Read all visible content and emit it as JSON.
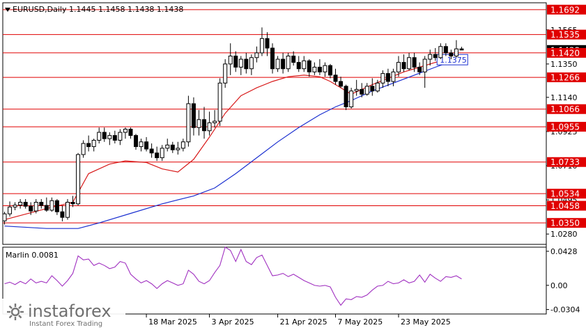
{
  "header": {
    "symbol_line": "EURUSD,Daily  1.1445 1.1458 1.1438 1.1438",
    "indicator_label": "Marlin 0.0081"
  },
  "watermark": {
    "brand": "instaforex",
    "tagline": "Instant Forex Trading"
  },
  "colors": {
    "background": "#ffffff",
    "level_line": "#e00000",
    "level_label_bg": "#e00000",
    "ma_fast": "#d81b1b",
    "ma_slow": "#1a2fd0",
    "ma_callout_border": "#1a2fd0",
    "marlin": "#a030c0",
    "candle": "#000000"
  },
  "chart_data": [
    {
      "type": "candlestick",
      "title": "EURUSD,Daily",
      "ohlc_last": {
        "open": 1.1445,
        "high": 1.1458,
        "low": 1.1438,
        "close": 1.1438
      },
      "ylim": [
        1.0215,
        1.1735
      ],
      "y_ticks": [
        1.1565,
        1.135,
        1.114,
        1.0925,
        1.071,
        1.0495,
        1.028
      ],
      "x_tick_labels": [
        "18 Mar 2025",
        "3 Apr 2025",
        "21 Apr 2025",
        "7 May 2025",
        "23 May 2025"
      ],
      "x_tick_index": [
        27,
        39,
        52,
        63,
        75
      ],
      "price_levels": [
        1.1692,
        1.1535,
        1.142,
        1.1266,
        1.1066,
        1.0955,
        1.0733,
        1.0534,
        1.0458,
        1.035
      ],
      "current_price_marker": 1.1438,
      "ma_callout": {
        "value": "1.1375",
        "index": 81
      },
      "ohlc": [
        [
          1.0363,
          1.042,
          1.034,
          1.0407
        ],
        [
          1.0407,
          1.0485,
          1.039,
          1.045
        ],
        [
          1.045,
          1.048,
          1.043,
          1.0462
        ],
        [
          1.0462,
          1.05,
          1.044,
          1.048
        ],
        [
          1.048,
          1.05,
          1.044,
          1.0455
        ],
        [
          1.0455,
          1.048,
          1.04,
          1.0425
        ],
        [
          1.0425,
          1.05,
          1.041,
          1.048
        ],
        [
          1.048,
          1.05,
          1.044,
          1.046
        ],
        [
          1.046,
          1.051,
          1.042,
          1.043
        ],
        [
          1.043,
          1.051,
          1.042,
          1.049
        ],
        [
          1.049,
          1.05,
          1.04,
          1.042
        ],
        [
          1.042,
          1.046,
          1.036,
          1.0385
        ],
        [
          1.0385,
          1.05,
          1.037,
          1.048
        ],
        [
          1.048,
          1.052,
          1.045,
          1.047
        ],
        [
          1.047,
          1.079,
          1.046,
          1.078
        ],
        [
          1.078,
          1.087,
          1.076,
          1.085
        ],
        [
          1.085,
          1.09,
          1.08,
          1.083
        ],
        [
          1.083,
          1.088,
          1.08,
          1.087
        ],
        [
          1.087,
          1.095,
          1.085,
          1.092
        ],
        [
          1.092,
          1.095,
          1.086,
          1.088
        ],
        [
          1.088,
          1.092,
          1.084,
          1.09
        ],
        [
          1.09,
          1.093,
          1.085,
          1.087
        ],
        [
          1.087,
          1.094,
          1.084,
          1.092
        ],
        [
          1.092,
          1.095,
          1.088,
          1.094
        ],
        [
          1.094,
          1.095,
          1.088,
          1.09
        ],
        [
          1.09,
          1.091,
          1.081,
          1.083
        ],
        [
          1.083,
          1.088,
          1.08,
          1.086
        ],
        [
          1.086,
          1.089,
          1.08,
          1.0815
        ],
        [
          1.0815,
          1.085,
          1.076,
          1.079
        ],
        [
          1.079,
          1.083,
          1.074,
          1.076
        ],
        [
          1.076,
          1.084,
          1.074,
          1.082
        ],
        [
          1.082,
          1.088,
          1.08,
          1.084
        ],
        [
          1.084,
          1.086,
          1.079,
          1.081
        ],
        [
          1.081,
          1.086,
          1.078,
          1.082
        ],
        [
          1.082,
          1.088,
          1.08,
          1.086
        ],
        [
          1.086,
          1.115,
          1.083,
          1.11
        ],
        [
          1.11,
          1.114,
          1.09,
          1.095
        ],
        [
          1.095,
          1.106,
          1.09,
          1.1
        ],
        [
          1.1,
          1.108,
          1.088,
          1.093
        ],
        [
          1.093,
          1.105,
          1.09,
          1.098
        ],
        [
          1.098,
          1.106,
          1.095,
          1.099
        ],
        [
          1.099,
          1.126,
          1.096,
          1.123
        ],
        [
          1.123,
          1.138,
          1.12,
          1.135
        ],
        [
          1.135,
          1.148,
          1.128,
          1.14
        ],
        [
          1.14,
          1.143,
          1.13,
          1.133
        ],
        [
          1.133,
          1.14,
          1.128,
          1.138
        ],
        [
          1.138,
          1.142,
          1.129,
          1.132
        ],
        [
          1.132,
          1.141,
          1.128,
          1.139
        ],
        [
          1.139,
          1.146,
          1.136,
          1.142
        ],
        [
          1.142,
          1.158,
          1.14,
          1.151
        ],
        [
          1.151,
          1.155,
          1.14,
          1.145
        ],
        [
          1.145,
          1.148,
          1.129,
          1.132
        ],
        [
          1.132,
          1.14,
          1.13,
          1.138
        ],
        [
          1.138,
          1.142,
          1.129,
          1.132
        ],
        [
          1.132,
          1.142,
          1.13,
          1.14
        ],
        [
          1.14,
          1.143,
          1.134,
          1.136
        ],
        [
          1.136,
          1.14,
          1.13,
          1.132
        ],
        [
          1.132,
          1.14,
          1.13,
          1.137
        ],
        [
          1.137,
          1.138,
          1.127,
          1.13
        ],
        [
          1.13,
          1.136,
          1.128,
          1.133
        ],
        [
          1.133,
          1.138,
          1.128,
          1.13
        ],
        [
          1.13,
          1.136,
          1.127,
          1.134
        ],
        [
          1.134,
          1.135,
          1.126,
          1.128
        ],
        [
          1.128,
          1.132,
          1.122,
          1.124
        ],
        [
          1.124,
          1.127,
          1.12,
          1.121
        ],
        [
          1.121,
          1.122,
          1.106,
          1.108
        ],
        [
          1.108,
          1.12,
          1.107,
          1.118
        ],
        [
          1.118,
          1.125,
          1.115,
          1.119
        ],
        [
          1.119,
          1.123,
          1.114,
          1.116
        ],
        [
          1.116,
          1.123,
          1.115,
          1.121
        ],
        [
          1.121,
          1.126,
          1.115,
          1.118
        ],
        [
          1.118,
          1.125,
          1.117,
          1.123
        ],
        [
          1.123,
          1.131,
          1.12,
          1.129
        ],
        [
          1.129,
          1.132,
          1.121,
          1.124
        ],
        [
          1.124,
          1.132,
          1.121,
          1.13
        ],
        [
          1.13,
          1.14,
          1.127,
          1.136
        ],
        [
          1.136,
          1.141,
          1.13,
          1.132
        ],
        [
          1.132,
          1.142,
          1.131,
          1.139
        ],
        [
          1.139,
          1.142,
          1.13,
          1.133
        ],
        [
          1.133,
          1.136,
          1.128,
          1.13
        ],
        [
          1.13,
          1.14,
          1.12,
          1.138
        ],
        [
          1.138,
          1.144,
          1.134,
          1.141
        ],
        [
          1.141,
          1.145,
          1.137,
          1.139
        ],
        [
          1.139,
          1.148,
          1.138,
          1.146
        ],
        [
          1.146,
          1.148,
          1.14,
          1.142
        ],
        [
          1.142,
          1.144,
          1.138,
          1.14
        ],
        [
          1.14,
          1.15,
          1.139,
          1.1445
        ],
        [
          1.1445,
          1.1458,
          1.1438,
          1.1438
        ]
      ],
      "ma_fast": [
        [
          0,
          1.037
        ],
        [
          8,
          1.044
        ],
        [
          13,
          1.048
        ],
        [
          16,
          1.066
        ],
        [
          20,
          1.072
        ],
        [
          23,
          1.074
        ],
        [
          27,
          1.073
        ],
        [
          30,
          1.069
        ],
        [
          33,
          1.067
        ],
        [
          36,
          1.075
        ],
        [
          39,
          1.089
        ],
        [
          42,
          1.104
        ],
        [
          45,
          1.115
        ],
        [
          48,
          1.12
        ],
        [
          51,
          1.124
        ],
        [
          54,
          1.127
        ],
        [
          57,
          1.128
        ],
        [
          60,
          1.127
        ],
        [
          62,
          1.124
        ],
        [
          64,
          1.12
        ],
        [
          66,
          1.116
        ],
        [
          68,
          1.119
        ],
        [
          70,
          1.122
        ],
        [
          73,
          1.126
        ],
        [
          76,
          1.13
        ],
        [
          79,
          1.133
        ],
        [
          82,
          1.136
        ],
        [
          85,
          1.138
        ],
        [
          87,
          1.1395
        ]
      ],
      "ma_slow": [
        [
          0,
          1.033
        ],
        [
          8,
          1.0315
        ],
        [
          14,
          1.0315
        ],
        [
          18,
          1.035
        ],
        [
          24,
          1.041
        ],
        [
          30,
          1.047
        ],
        [
          36,
          1.052
        ],
        [
          40,
          1.057
        ],
        [
          44,
          1.066
        ],
        [
          48,
          1.076
        ],
        [
          52,
          1.086
        ],
        [
          56,
          1.095
        ],
        [
          60,
          1.103
        ],
        [
          63,
          1.108
        ],
        [
          66,
          1.112
        ],
        [
          70,
          1.118
        ],
        [
          74,
          1.123
        ],
        [
          78,
          1.128
        ],
        [
          82,
          1.133
        ],
        [
          85,
          1.1365
        ],
        [
          87,
          1.1375
        ]
      ]
    },
    {
      "type": "line",
      "title": "Marlin 0.0081",
      "ylim": [
        -0.036,
        0.048
      ],
      "y_ticks": [
        0.0428,
        0.0,
        -0.0304
      ],
      "y_tick_labels": [
        "0.0428",
        "0.00",
        "-0.0304"
      ],
      "values": [
        0.002,
        0.004,
        0.001,
        0.005,
        0.002,
        0.008,
        0.003,
        0.005,
        0.003,
        0.012,
        0.006,
        -0.001,
        0.006,
        0.015,
        0.037,
        0.032,
        0.033,
        0.025,
        0.028,
        0.025,
        0.021,
        0.023,
        0.03,
        0.028,
        0.014,
        0.008,
        0.003,
        0.006,
        0.002,
        -0.004,
        0.002,
        0.006,
        0.003,
        0.0,
        0.002,
        0.019,
        0.014,
        0.005,
        0.002,
        0.006,
        0.016,
        0.025,
        0.048,
        0.044,
        0.03,
        0.045,
        0.03,
        0.026,
        0.035,
        0.038,
        0.025,
        0.012,
        0.013,
        0.015,
        0.011,
        0.014,
        0.01,
        0.006,
        0.003,
        0.0,
        -0.001,
        0.0,
        -0.002,
        -0.015,
        -0.025,
        -0.017,
        -0.018,
        -0.014,
        -0.015,
        -0.012,
        -0.006,
        -0.001,
        0.0,
        0.005,
        0.002,
        0.003,
        0.007,
        0.003,
        0.005,
        0.013,
        0.004,
        0.014,
        0.009,
        0.005,
        0.011,
        0.01,
        0.012,
        0.0081
      ]
    }
  ]
}
